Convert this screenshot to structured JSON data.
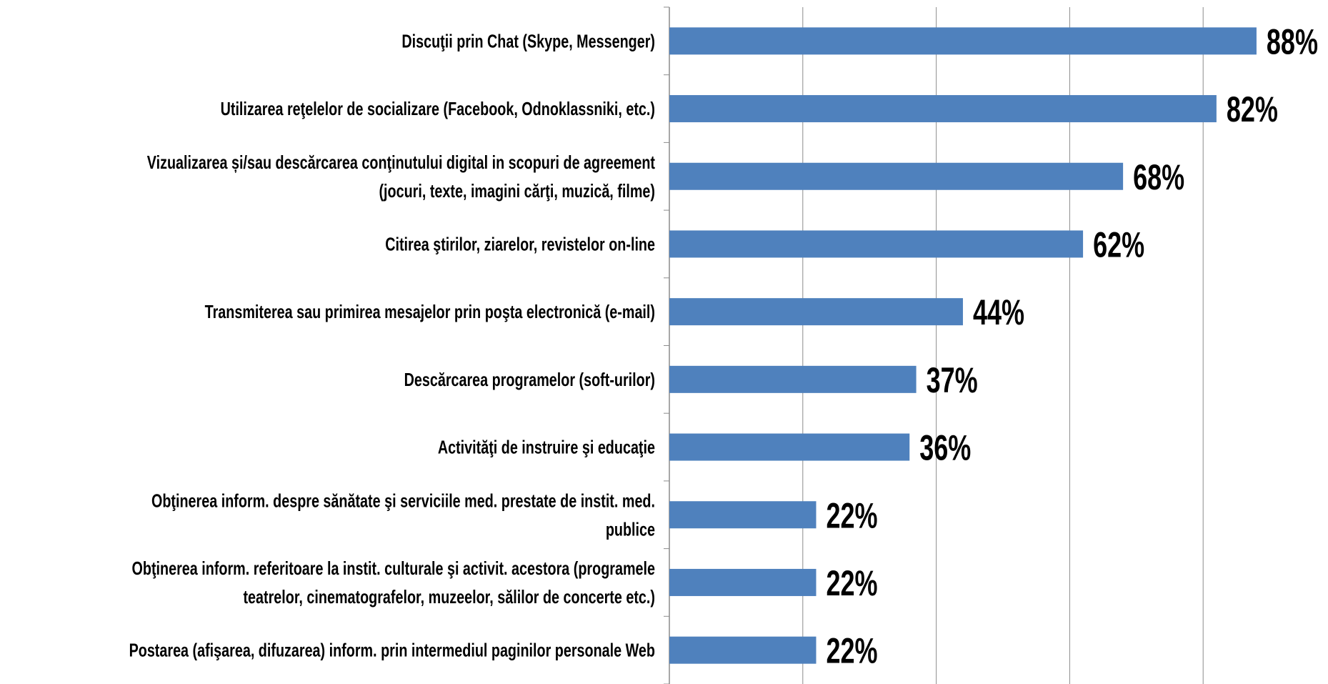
{
  "chart_data": {
    "type": "bar",
    "orientation": "horizontal",
    "categories": [
      "Discuţii prin Chat (Skype, Messenger)",
      "Utilizarea reţelelor de socializare (Facebook, Odnoklassniki, etc.)",
      "Vizualizarea și/sau descărcarea conţinutului digital in scopuri de agreement\n(jocuri,  texte, imagini cărţi, muzică, filme)",
      "Citirea ştirilor, ziarelor, revistelor on-line",
      "Transmiterea sau primirea mesajelor prin poşta electronică (e-mail)",
      "Descărcarea programelor (soft-urilor)",
      "Activităţi de instruire şi educaţie",
      "Obţinerea inform. despre sănătate şi serviciile med. prestate de instit. med.\npublice",
      "Obţinerea inform. referitoare la instit. culturale şi activit. acestora (programele\nteatrelor, cinematografelor, muzeelor, sălilor de concerte etc.)",
      "Postarea (afişarea, difuzarea) inform. prin intermediul paginilor personale Web"
    ],
    "values": [
      88,
      82,
      68,
      62,
      44,
      37,
      36,
      22,
      22,
      22
    ],
    "value_labels": [
      "88%",
      "82%",
      "68%",
      "62%",
      "44%",
      "37%",
      "36%",
      "22%",
      "22%",
      "22%"
    ],
    "color": "#4f81bd",
    "xlim": [
      0,
      100
    ],
    "xticks": [
      0,
      20,
      40,
      60,
      80
    ],
    "grid": true
  }
}
